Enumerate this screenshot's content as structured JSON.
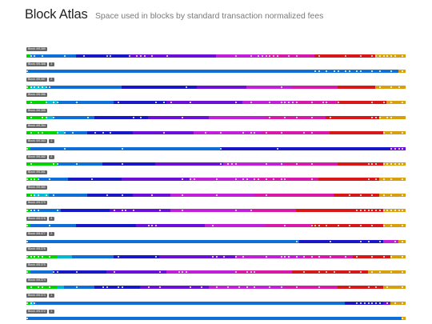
{
  "page": {
    "title": "Block Atlas",
    "subtitle": "Space used in blocks by standard transaction normalized fees"
  },
  "colors": {
    "fee_gradient": [
      "#00d400",
      "#00b8d0",
      "#0d70d8",
      "#1818c8",
      "#6a10d8",
      "#c020d8",
      "#d818a8",
      "#d81818",
      "#d8a010"
    ],
    "dot": "#ffffff",
    "label_bg": "#666666"
  },
  "blocks": [
    {
      "label": "Block 491389",
      "txs": "",
      "fill": [
        0.01,
        0.0,
        0.12,
        0.14,
        0.23,
        0.13,
        0.13,
        0.16,
        0.08
      ],
      "dots": [
        0.01,
        0.02,
        0.04,
        0.1,
        0.15,
        0.21,
        0.22,
        0.27,
        0.29,
        0.3,
        0.31,
        0.33,
        0.37,
        0.55,
        0.59,
        0.61,
        0.62,
        0.63,
        0.64,
        0.65,
        0.66,
        0.69,
        0.71,
        0.77,
        0.84,
        0.88,
        0.91,
        0.92,
        0.93,
        0.94,
        0.95,
        0.96,
        0.97,
        0.99
      ]
    },
    {
      "label": "Block 491388",
      "txs": "3",
      "fill": [
        0.0,
        0.0,
        0.98,
        0.0,
        0.0,
        0.0,
        0.0,
        0.0,
        0.02
      ],
      "dots": [
        0.0,
        0.76,
        0.77,
        0.79,
        0.81,
        0.82,
        0.84,
        0.85,
        0.87,
        0.88,
        0.91,
        0.93,
        0.96,
        0.99
      ]
    },
    {
      "label": "Block 491387",
      "txs": "2",
      "fill": [
        0.01,
        0.04,
        0.2,
        0.2,
        0.13,
        0.12,
        0.12,
        0.1,
        0.08
      ],
      "dots": [
        0.0,
        0.01,
        0.02,
        0.03,
        0.04,
        0.05,
        0.06,
        0.42,
        0.67,
        0.93,
        0.96,
        0.98
      ]
    },
    {
      "label": "Block 491386",
      "txs": "",
      "fill": [
        0.05,
        0.03,
        0.15,
        0.14,
        0.2,
        0.14,
        0.11,
        0.13,
        0.05
      ],
      "dots": [
        0.01,
        0.05,
        0.07,
        0.08,
        0.13,
        0.24,
        0.34,
        0.36,
        0.38,
        0.43,
        0.55,
        0.59,
        0.64,
        0.67,
        0.68,
        0.69,
        0.7,
        0.71,
        0.75,
        0.78,
        0.79,
        0.82,
        0.91,
        0.94,
        0.96,
        0.99
      ]
    },
    {
      "label": "Block 491385",
      "txs": "",
      "fill": [
        0.05,
        0.02,
        0.11,
        0.14,
        0.16,
        0.15,
        0.16,
        0.14,
        0.07
      ],
      "dots": [
        0.01,
        0.04,
        0.05,
        0.07,
        0.16,
        0.28,
        0.3,
        0.41,
        0.64,
        0.68,
        0.71,
        0.75,
        0.8,
        0.91,
        0.92,
        0.93,
        0.95,
        0.96
      ]
    },
    {
      "label": "Block 491384",
      "txs": "",
      "fill": [
        0.08,
        0.02,
        0.06,
        0.12,
        0.16,
        0.18,
        0.18,
        0.14,
        0.06
      ],
      "dots": [
        0.01,
        0.03,
        0.04,
        0.08,
        0.1,
        0.12,
        0.18,
        0.2,
        0.22,
        0.36,
        0.47,
        0.51,
        0.57,
        0.59,
        0.6,
        0.63,
        0.67,
        0.73,
        0.75,
        0.94,
        0.96,
        0.99
      ]
    },
    {
      "label": "Block 491383",
      "txs": "1",
      "fill": [
        0.01,
        0.0,
        0.5,
        0.45,
        0.04,
        0.0,
        0.0,
        0.0,
        0.0
      ],
      "dots": [
        0.0,
        0.1,
        0.25,
        0.51,
        0.66,
        0.96,
        0.97,
        0.98,
        0.99
      ]
    },
    {
      "label": "Block 491382",
      "txs": "2",
      "fill": [
        0.08,
        0.0,
        0.12,
        0.14,
        0.18,
        0.16,
        0.14,
        0.12,
        0.06
      ],
      "dots": [
        0.01,
        0.07,
        0.08,
        0.13,
        0.25,
        0.51,
        0.53,
        0.54,
        0.55,
        0.63,
        0.67,
        0.71,
        0.75,
        0.9,
        0.91,
        0.92,
        0.94,
        0.95,
        0.96,
        0.97,
        0.98,
        0.99
      ]
    },
    {
      "label": "Block 491381",
      "txs": "",
      "fill": [
        0.03,
        0.0,
        0.08,
        0.14,
        0.18,
        0.17,
        0.17,
        0.16,
        0.07
      ],
      "dots": [
        0.0,
        0.01,
        0.02,
        0.03,
        0.06,
        0.17,
        0.41,
        0.43,
        0.44,
        0.5,
        0.55,
        0.57,
        0.58,
        0.6,
        0.61,
        0.63,
        0.65,
        0.67,
        0.68,
        0.75,
        0.9,
        0.92,
        0.94,
        0.96,
        0.99
      ]
    },
    {
      "label": "Block 491380",
      "txs": "",
      "fill": [
        0.02,
        0.04,
        0.1,
        0.12,
        0.1,
        0.22,
        0.21,
        0.12,
        0.07
      ],
      "dots": [
        0.01,
        0.02,
        0.03,
        0.05,
        0.07,
        0.21,
        0.25,
        0.33,
        0.41,
        0.5,
        0.63,
        0.85,
        0.88,
        0.91,
        0.94,
        0.96,
        0.99
      ]
    },
    {
      "label": "Block 491379",
      "txs": "",
      "fill": [
        0.01,
        0.0,
        0.08,
        0.13,
        0.16,
        0.21,
        0.12,
        0.23,
        0.06
      ],
      "dots": [
        0.0,
        0.01,
        0.02,
        0.03,
        0.08,
        0.23,
        0.25,
        0.26,
        0.28,
        0.35,
        0.41,
        0.55,
        0.59,
        0.87,
        0.88,
        0.89,
        0.9,
        0.91,
        0.92,
        0.93,
        0.94,
        0.95,
        0.96,
        0.97,
        0.98,
        0.99
      ]
    },
    {
      "label": "Block 491378",
      "txs": "4",
      "fill": [
        0.01,
        0.0,
        0.12,
        0.16,
        0.18,
        0.16,
        0.12,
        0.19,
        0.06
      ],
      "dots": [
        0.0,
        0.06,
        0.32,
        0.33,
        0.34,
        0.49,
        0.68,
        0.75,
        0.76,
        0.77,
        0.79,
        0.82,
        0.85,
        0.88,
        0.91,
        0.94,
        0.96,
        0.99
      ]
    },
    {
      "label": "Block 491377",
      "txs": "2",
      "fill": [
        0.0,
        0.0,
        0.72,
        0.22,
        0.0,
        0.04,
        0.0,
        0.0,
        0.02
      ],
      "dots": [
        0.0,
        0.71,
        0.8,
        0.88,
        0.9,
        0.93,
        0.97,
        0.99
      ]
    },
    {
      "label": "Block 491376",
      "txs": "",
      "fill": [
        0.08,
        0.04,
        0.11,
        0.12,
        0.2,
        0.18,
        0.13,
        0.1,
        0.04
      ],
      "dots": [
        0.0,
        0.01,
        0.02,
        0.03,
        0.04,
        0.06,
        0.24,
        0.34,
        0.49,
        0.5,
        0.52,
        0.55,
        0.57,
        0.63,
        0.67,
        0.68,
        0.69,
        0.71,
        0.73,
        0.75,
        0.77,
        0.8,
        0.84,
        0.87,
        0.91,
        0.94,
        0.96,
        0.99
      ]
    },
    {
      "label": "Block 491375",
      "txs": "",
      "fill": [
        0.01,
        0.0,
        0.06,
        0.14,
        0.16,
        0.18,
        0.15,
        0.2,
        0.1
      ],
      "dots": [
        0.0,
        0.07,
        0.08,
        0.13,
        0.23,
        0.35,
        0.4,
        0.41,
        0.42,
        0.55,
        0.58,
        0.59,
        0.6,
        0.73,
        0.77,
        0.79,
        0.81,
        0.85,
        0.88,
        0.91,
        0.93,
        0.96,
        0.99
      ]
    },
    {
      "label": "Block 491374",
      "txs": "",
      "fill": [
        0.08,
        0.02,
        0.08,
        0.12,
        0.18,
        0.2,
        0.14,
        0.12,
        0.06
      ],
      "dots": [
        0.01,
        0.03,
        0.04,
        0.06,
        0.13,
        0.2,
        0.21,
        0.24,
        0.25,
        0.32,
        0.35,
        0.43,
        0.46,
        0.5,
        0.53,
        0.56,
        0.58,
        0.6,
        0.64,
        0.67,
        0.71,
        0.77,
        0.85,
        0.9,
        0.92,
        0.95,
        0.99
      ]
    },
    {
      "label": "Block 491373",
      "txs": "1",
      "fill": [
        0.01,
        0.01,
        0.82,
        0.1,
        0.02,
        0.0,
        0.0,
        0.0,
        0.04
      ],
      "dots": [
        0.0,
        0.01,
        0.02,
        0.87,
        0.88,
        0.89,
        0.9,
        0.91,
        0.92,
        0.93,
        0.95,
        0.97,
        0.99
      ]
    },
    {
      "label": "Block 491372",
      "txs": "1",
      "fill": [
        0.0,
        0.0,
        0.99,
        0.0,
        0.0,
        0.0,
        0.0,
        0.0,
        0.01
      ],
      "dots": [
        0.0,
        0.99
      ]
    }
  ]
}
